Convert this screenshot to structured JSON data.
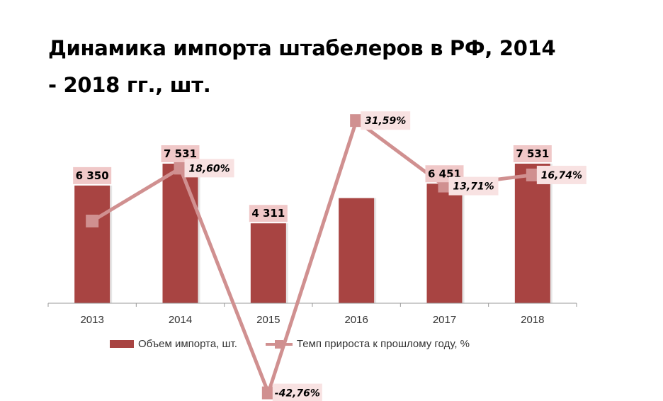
{
  "title": "Динамика импорта штабелеров в РФ, 2014 - 2018 гг., шт.",
  "colors": {
    "bar": "#a84442",
    "bar_label_bg": "#f0c8c8",
    "rate_line": "#d09090",
    "rate_label_bg": "#f8e2e2",
    "axis": "#999999"
  },
  "chart_data": {
    "type": "bar+line",
    "title": "Динамика импорта штабелеров в РФ, 2014 - 2018 гг., шт.",
    "categories": [
      "2013",
      "2014",
      "2015",
      "2016",
      "2017",
      "2018"
    ],
    "series": [
      {
        "name": "Объем импорта, шт.",
        "type": "bar",
        "values": [
          6350,
          7531,
          4311,
          5673,
          6451,
          7531
        ],
        "labels": [
          "6 350",
          "7 531",
          "4 311",
          "",
          "6 451",
          "7 531"
        ]
      },
      {
        "name": "Темп прироста к прошлому году, %",
        "type": "line",
        "values": [
          null,
          18.6,
          -42.76,
          31.59,
          13.71,
          16.74
        ],
        "labels": [
          "",
          "18,60%",
          "-42,76%",
          "31,59%",
          "13,71%",
          "16,74%"
        ]
      }
    ],
    "legend": "bottom",
    "grid": false
  }
}
